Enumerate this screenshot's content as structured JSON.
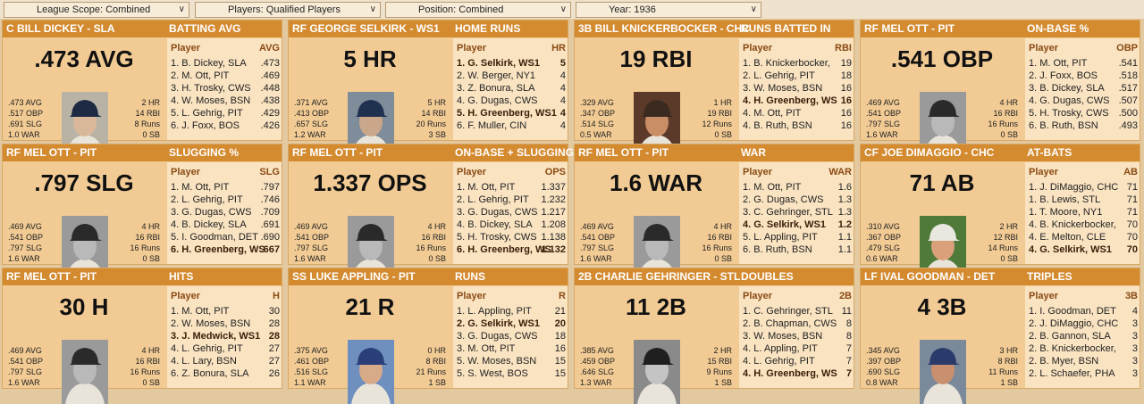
{
  "filters": [
    {
      "label": "League Scope: Combined"
    },
    {
      "label": "Players: Qualified Players"
    },
    {
      "label": "Position: Combined"
    },
    {
      "label": "Year: 1936"
    }
  ],
  "cards": [
    {
      "player_header": "C BILL DICKEY - SLA",
      "category": "BATTING AVG",
      "stat": ".473 AVG",
      "left_stats": [
        ".473 AVG",
        ".517 OBP",
        ".691 SLG",
        "1.0 WAR"
      ],
      "right_stats": [
        "2 HR",
        "14 RBI",
        "8 Runs",
        "0 SB"
      ],
      "photo": {
        "cap": "#1e2a44",
        "skin": "#d9b89a",
        "bg": "#b9b3a6"
      },
      "col_player": "Player",
      "col_value": "AVG",
      "leaders": [
        {
          "name": "1. B. Dickey, SLA",
          "value": ".473",
          "hl": false
        },
        {
          "name": "2. M. Ott, PIT",
          "value": ".469",
          "hl": false
        },
        {
          "name": "3. H. Trosky, CWS",
          "value": ".448",
          "hl": false
        },
        {
          "name": "4. W. Moses, BSN",
          "value": ".438",
          "hl": false
        },
        {
          "name": "5. L. Gehrig, PIT",
          "value": ".429",
          "hl": false
        },
        {
          "name": "6. J. Foxx, BOS",
          "value": ".426",
          "hl": false
        }
      ]
    },
    {
      "player_header": "RF GEORGE SELKIRK - WS1",
      "category": "HOME RUNS",
      "stat": "5 HR",
      "left_stats": [
        ".371 AVG",
        ".413 OBP",
        ".657 SLG",
        "1.2 WAR"
      ],
      "right_stats": [
        "5 HR",
        "14 RBI",
        "20 Runs",
        "3 SB"
      ],
      "photo": {
        "cap": "#20304f",
        "skin": "#caa68a",
        "bg": "#7f8c9a"
      },
      "col_player": "Player",
      "col_value": "HR",
      "leaders": [
        {
          "name": "1. G. Selkirk, WS1",
          "value": "5",
          "hl": true
        },
        {
          "name": "2. W. Berger, NY1",
          "value": "4",
          "hl": false
        },
        {
          "name": "3. Z. Bonura, SLA",
          "value": "4",
          "hl": false
        },
        {
          "name": "4. G. Dugas, CWS",
          "value": "4",
          "hl": false
        },
        {
          "name": "5. H. Greenberg, WS1",
          "value": "4",
          "hl": true
        },
        {
          "name": "6. F. Muller, CIN",
          "value": "4",
          "hl": false
        }
      ]
    },
    {
      "player_header": "3B BILL KNICKERBOCKER - CHC",
      "category": "RUNS BATTED IN",
      "stat": "19 RBI",
      "left_stats": [
        ".329 AVG",
        ".347 OBP",
        ".514 SLG",
        "0.5 WAR"
      ],
      "right_stats": [
        "1 HR",
        "19 RBI",
        "12 Runs",
        "0 SB"
      ],
      "photo": {
        "cap": "#3b2a20",
        "skin": "#c98e66",
        "bg": "#5b3a2a"
      },
      "col_player": "Player",
      "col_value": "RBI",
      "leaders": [
        {
          "name": "1. B. Knickerbocker,",
          "value": "19",
          "hl": false
        },
        {
          "name": "2. L. Gehrig, PIT",
          "value": "18",
          "hl": false
        },
        {
          "name": "3. W. Moses, BSN",
          "value": "16",
          "hl": false
        },
        {
          "name": "4. H. Greenberg, WS",
          "value": "16",
          "hl": true
        },
        {
          "name": "4. M. Ott, PIT",
          "value": "16",
          "hl": false
        },
        {
          "name": "4. B. Ruth, BSN",
          "value": "16",
          "hl": false
        }
      ]
    },
    {
      "player_header": "RF MEL OTT - PIT",
      "category": "ON-BASE %",
      "stat": ".541 OBP",
      "left_stats": [
        ".469 AVG",
        ".541 OBP",
        ".797 SLG",
        "1.6 WAR"
      ],
      "right_stats": [
        "4 HR",
        "16 RBI",
        "16 Runs",
        "0 SB"
      ],
      "photo": {
        "cap": "#2a2a2a",
        "skin": "#b9b9b9",
        "bg": "#9a9a9a"
      },
      "col_player": "Player",
      "col_value": "OBP",
      "leaders": [
        {
          "name": "1. M. Ott, PIT",
          "value": ".541",
          "hl": false
        },
        {
          "name": "2. J. Foxx, BOS",
          "value": ".518",
          "hl": false
        },
        {
          "name": "3. B. Dickey, SLA",
          "value": ".517",
          "hl": false
        },
        {
          "name": "4. G. Dugas, CWS",
          "value": ".507",
          "hl": false
        },
        {
          "name": "5. H. Trosky, CWS",
          "value": ".500",
          "hl": false
        },
        {
          "name": "6. B. Ruth, BSN",
          "value": ".493",
          "hl": false
        }
      ]
    },
    {
      "player_header": "RF MEL OTT - PIT",
      "category": "SLUGGING %",
      "stat": ".797 SLG",
      "left_stats": [
        ".469 AVG",
        ".541 OBP",
        ".797 SLG",
        "1.6 WAR"
      ],
      "right_stats": [
        "4 HR",
        "16 RBI",
        "16 Runs",
        "0 SB"
      ],
      "photo": {
        "cap": "#2a2a2a",
        "skin": "#b9b9b9",
        "bg": "#9a9a9a"
      },
      "col_player": "Player",
      "col_value": "SLG",
      "leaders": [
        {
          "name": "1. M. Ott, PIT",
          "value": ".797",
          "hl": false
        },
        {
          "name": "2. L. Gehrig, PIT",
          "value": ".746",
          "hl": false
        },
        {
          "name": "3. G. Dugas, CWS",
          "value": ".709",
          "hl": false
        },
        {
          "name": "4. B. Dickey, SLA",
          "value": ".691",
          "hl": false
        },
        {
          "name": "5. I. Goodman, DET",
          "value": ".690",
          "hl": false
        },
        {
          "name": "6. H. Greenberg, WS",
          "value": ".667",
          "hl": true
        }
      ]
    },
    {
      "player_header": "RF MEL OTT - PIT",
      "category": "ON-BASE + SLUGGING",
      "stat": "1.337 OPS",
      "left_stats": [
        ".469 AVG",
        ".541 OBP",
        ".797 SLG",
        "1.6 WAR"
      ],
      "right_stats": [
        "4 HR",
        "16 RBI",
        "16 Runs",
        "0 SB"
      ],
      "photo": {
        "cap": "#2a2a2a",
        "skin": "#b9b9b9",
        "bg": "#9a9a9a"
      },
      "col_player": "Player",
      "col_value": "OPS",
      "leaders": [
        {
          "name": "1. M. Ott, PIT",
          "value": "1.337",
          "hl": false
        },
        {
          "name": "2. L. Gehrig, PIT",
          "value": "1.232",
          "hl": false
        },
        {
          "name": "3. G. Dugas, CWS",
          "value": "1.217",
          "hl": false
        },
        {
          "name": "4. B. Dickey, SLA",
          "value": "1.208",
          "hl": false
        },
        {
          "name": "5. H. Trosky, CWS",
          "value": "1.138",
          "hl": false
        },
        {
          "name": "6. H. Greenberg, WS",
          "value": "1.132",
          "hl": true
        }
      ]
    },
    {
      "player_header": "RF MEL OTT - PIT",
      "category": "WAR",
      "stat": "1.6 WAR",
      "left_stats": [
        ".469 AVG",
        ".541 OBP",
        ".797 SLG",
        "1.6 WAR"
      ],
      "right_stats": [
        "4 HR",
        "16 RBI",
        "16 Runs",
        "0 SB"
      ],
      "photo": {
        "cap": "#2a2a2a",
        "skin": "#b9b9b9",
        "bg": "#9a9a9a"
      },
      "col_player": "Player",
      "col_value": "WAR",
      "leaders": [
        {
          "name": "1. M. Ott, PIT",
          "value": "1.6",
          "hl": false
        },
        {
          "name": "2. G. Dugas, CWS",
          "value": "1.3",
          "hl": false
        },
        {
          "name": "3. C. Gehringer, STL",
          "value": "1.3",
          "hl": false
        },
        {
          "name": "4. G. Selkirk, WS1",
          "value": "1.2",
          "hl": true
        },
        {
          "name": "5. L. Appling, PIT",
          "value": "1.1",
          "hl": false
        },
        {
          "name": "6. B. Ruth, BSN",
          "value": "1.1",
          "hl": false
        }
      ]
    },
    {
      "player_header": "CF JOE DIMAGGIO - CHC",
      "category": "AT-BATS",
      "stat": "71 AB",
      "left_stats": [
        ".310 AVG",
        ".367 OBP",
        ".479 SLG",
        "0.6 WAR"
      ],
      "right_stats": [
        "2 HR",
        "12 RBI",
        "14 Runs",
        "0 SB"
      ],
      "photo": {
        "cap": "#e8e8e0",
        "skin": "#d9a07a",
        "bg": "#4f7a3a"
      },
      "col_player": "Player",
      "col_value": "AB",
      "leaders": [
        {
          "name": "1. J. DiMaggio, CHC",
          "value": "71",
          "hl": false
        },
        {
          "name": "1. B. Lewis, STL",
          "value": "71",
          "hl": false
        },
        {
          "name": "1. T. Moore, NY1",
          "value": "71",
          "hl": false
        },
        {
          "name": "4. B. Knickerbocker,",
          "value": "70",
          "hl": false
        },
        {
          "name": "4. E. Melton, CLE",
          "value": "70",
          "hl": false
        },
        {
          "name": "4. G. Selkirk, WS1",
          "value": "70",
          "hl": true
        }
      ]
    },
    {
      "player_header": "RF MEL OTT - PIT",
      "category": "HITS",
      "stat": "30 H",
      "left_stats": [
        ".469 AVG",
        ".541 OBP",
        ".797 SLG",
        "1.6 WAR"
      ],
      "right_stats": [
        "4 HR",
        "16 RBI",
        "16 Runs",
        "0 SB"
      ],
      "photo": {
        "cap": "#2a2a2a",
        "skin": "#b9b9b9",
        "bg": "#9a9a9a"
      },
      "col_player": "Player",
      "col_value": "H",
      "leaders": [
        {
          "name": "1. M. Ott, PIT",
          "value": "30",
          "hl": false
        },
        {
          "name": "2. W. Moses, BSN",
          "value": "28",
          "hl": false
        },
        {
          "name": "3. J. Medwick, WS1",
          "value": "28",
          "hl": true
        },
        {
          "name": "4. L. Gehrig, PIT",
          "value": "27",
          "hl": false
        },
        {
          "name": "4. L. Lary, BSN",
          "value": "27",
          "hl": false
        },
        {
          "name": "6. Z. Bonura, SLA",
          "value": "26",
          "hl": false
        }
      ]
    },
    {
      "player_header": "SS LUKE APPLING - PIT",
      "category": "RUNS",
      "stat": "21 R",
      "left_stats": [
        ".375 AVG",
        ".461 OBP",
        ".516 SLG",
        "1.1 WAR"
      ],
      "right_stats": [
        "0 HR",
        "8 RBI",
        "21 Runs",
        "1 SB"
      ],
      "photo": {
        "cap": "#2a3f7a",
        "skin": "#d7aa88",
        "bg": "#6f8fbf"
      },
      "col_player": "Player",
      "col_value": "R",
      "leaders": [
        {
          "name": "1. L. Appling, PIT",
          "value": "21",
          "hl": false
        },
        {
          "name": "2. G. Selkirk, WS1",
          "value": "20",
          "hl": true
        },
        {
          "name": "3. G. Dugas, CWS",
          "value": "18",
          "hl": false
        },
        {
          "name": "3. M. Ott, PIT",
          "value": "16",
          "hl": false
        },
        {
          "name": "5. W. Moses, BSN",
          "value": "15",
          "hl": false
        },
        {
          "name": "5. S. West, BOS",
          "value": "15",
          "hl": false
        }
      ]
    },
    {
      "player_header": "2B CHARLIE GEHRINGER - STL",
      "category": "DOUBLES",
      "stat": "11 2B",
      "left_stats": [
        ".385 AVG",
        ".459 OBP",
        ".646 SLG",
        "1.3 WAR"
      ],
      "right_stats": [
        "2 HR",
        "15 RBI",
        "9 Runs",
        "1 SB"
      ],
      "photo": {
        "cap": "#1f1f1f",
        "skin": "#c4c4c4",
        "bg": "#8a8a8a"
      },
      "col_player": "Player",
      "col_value": "2B",
      "leaders": [
        {
          "name": "1. C. Gehringer, STL",
          "value": "11",
          "hl": false
        },
        {
          "name": "2. B. Chapman, CWS",
          "value": "8",
          "hl": false
        },
        {
          "name": "3. W. Moses, BSN",
          "value": "8",
          "hl": false
        },
        {
          "name": "4. L. Appling, PIT",
          "value": "7",
          "hl": false
        },
        {
          "name": "4. L. Gehrig, PIT",
          "value": "7",
          "hl": false
        },
        {
          "name": "4. H. Greenberg, WS",
          "value": "7",
          "hl": true
        }
      ]
    },
    {
      "player_header": "LF IVAL GOODMAN - DET",
      "category": "TRIPLES",
      "stat": "4 3B",
      "left_stats": [
        ".345 AVG",
        ".397 OBP",
        ".690 SLG",
        "0.8 WAR"
      ],
      "right_stats": [
        "3 HR",
        "8 RBI",
        "11 Runs",
        "1 SB"
      ],
      "photo": {
        "cap": "#2a3a6a",
        "skin": "#c8906e",
        "bg": "#7a8a9a"
      },
      "col_player": "Player",
      "col_value": "3B",
      "leaders": [
        {
          "name": "1. I. Goodman, DET",
          "value": "4",
          "hl": false
        },
        {
          "name": "2. J. DiMaggio, CHC",
          "value": "3",
          "hl": false
        },
        {
          "name": "2. B. Gannon, SLA",
          "value": "3",
          "hl": false
        },
        {
          "name": "2. B. Knickerbocker,",
          "value": "3",
          "hl": false
        },
        {
          "name": "2. B. Myer, BSN",
          "value": "3",
          "hl": false
        },
        {
          "name": "2. L. Schaefer, PHA",
          "value": "3",
          "hl": false
        }
      ]
    }
  ]
}
